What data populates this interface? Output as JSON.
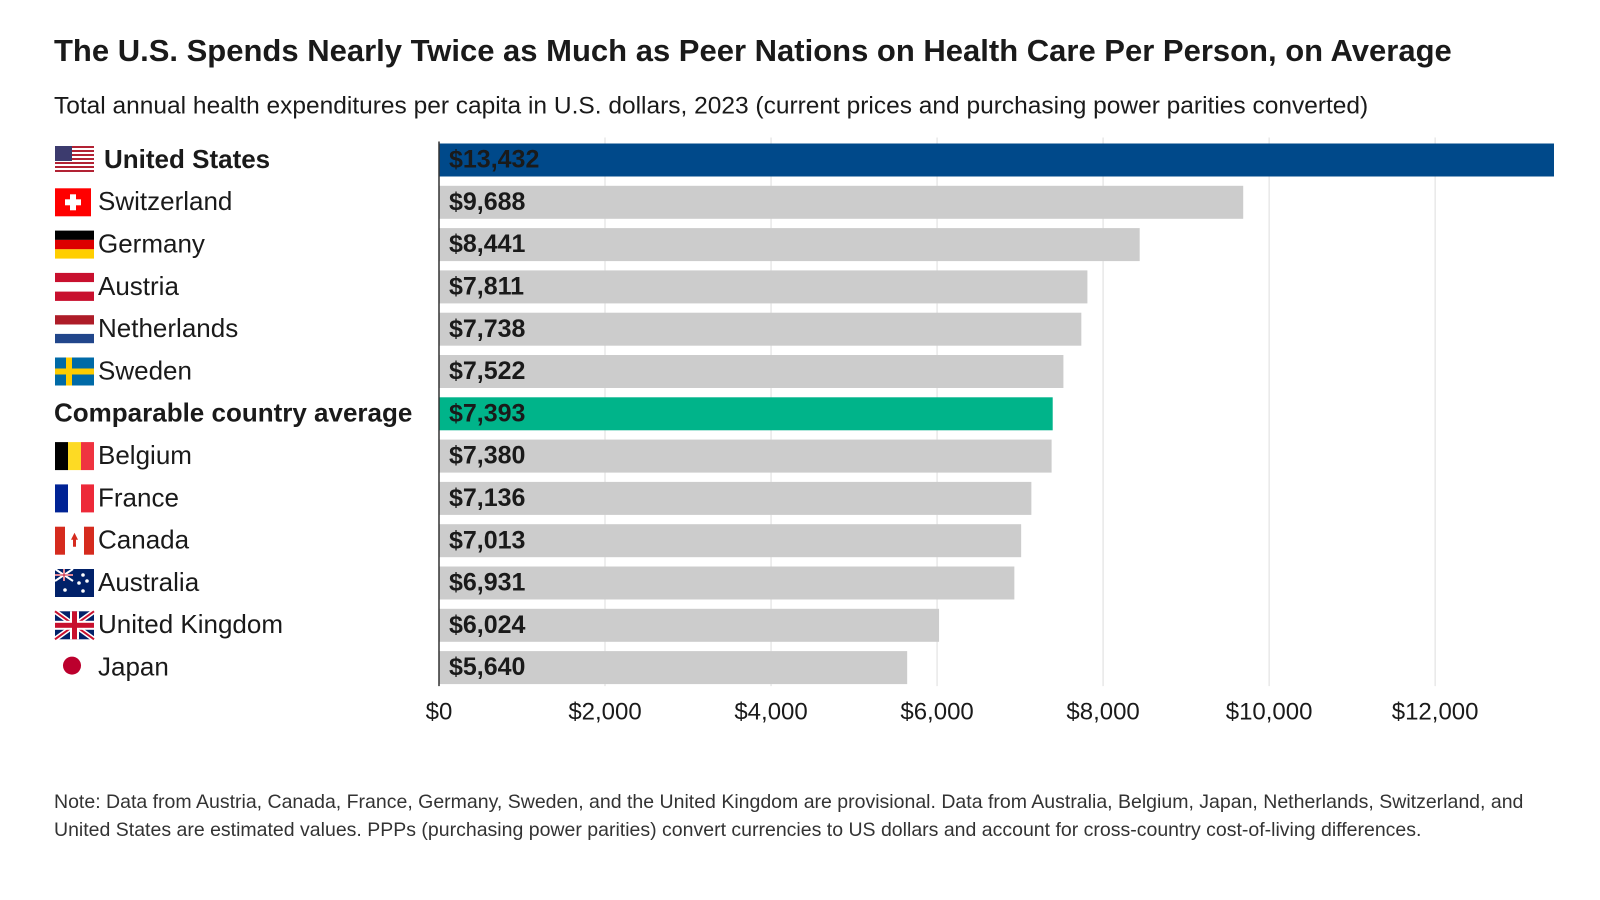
{
  "chart_data": {
    "type": "bar",
    "orientation": "horizontal",
    "title": "The U.S. Spends Nearly Twice as Much as Peer Nations on Health Care Per Person, on Average",
    "subtitle": "Total annual health expenditures per capita in U.S. dollars, 2023 (current prices and purchasing power parities converted)",
    "categories": [
      "United States",
      "Switzerland",
      "Germany",
      "Austria",
      "Netherlands",
      "Sweden",
      "Comparable country average",
      "Belgium",
      "France",
      "Canada",
      "Australia",
      "United Kingdom",
      "Japan"
    ],
    "values": [
      13432,
      9688,
      8441,
      7811,
      7738,
      7522,
      7393,
      7380,
      7136,
      7013,
      6931,
      6024,
      5640
    ],
    "value_labels": [
      "$13,432",
      "$9,688",
      "$8,441",
      "$7,811",
      "$7,738",
      "$7,522",
      "$7,393",
      "$7,380",
      "$7,136",
      "$7,013",
      "$6,931",
      "$6,024",
      "$5,640"
    ],
    "color": "#cccccc",
    "colors": [
      "#00498a",
      "#cccccc",
      "#cccccc",
      "#cccccc",
      "#cccccc",
      "#cccccc",
      "#00b48a",
      "#cccccc",
      "#cccccc",
      "#cccccc",
      "#cccccc",
      "#cccccc",
      "#cccccc"
    ],
    "xlim": [
      0,
      13432
    ],
    "xticks": [
      {
        "value": 0,
        "label": "$0"
      },
      {
        "value": 2000,
        "label": "$2,000"
      },
      {
        "value": 4000,
        "label": "$4,000"
      },
      {
        "value": 6000,
        "label": "$6,000"
      },
      {
        "value": 8000,
        "label": "$8,000"
      },
      {
        "value": 10000,
        "label": "$10,000"
      },
      {
        "value": 12000,
        "label": "$12,000"
      }
    ],
    "grid": true,
    "note": "Note: Data from Austria, Canada, France, Germany, Sweden, and the United Kingdom are provisional. Data from Australia, Belgium, Japan, Netherlands, Switzerland, and United States are estimated values. PPPs (purchasing power parities) convert currencies to US dollars and account for cross-country cost-of-living differences."
  }
}
